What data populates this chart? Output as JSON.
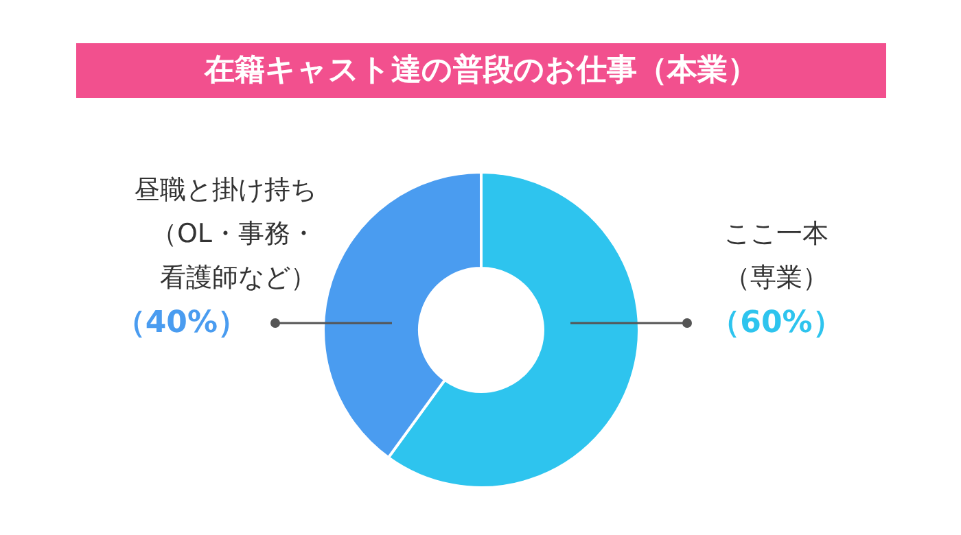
{
  "chart_data": {
    "type": "donut",
    "title": "在籍キャスト達の普段のお仕事（本業）",
    "categories": [
      "ここ一本（専業）",
      "昼職と掛け持ち（OL・事務・看護師など）"
    ],
    "values": [
      60,
      40
    ],
    "colors": [
      "#2ec4ee",
      "#4a9cf0"
    ],
    "value_labels": [
      "（60%）",
      "（40%）"
    ]
  }
}
